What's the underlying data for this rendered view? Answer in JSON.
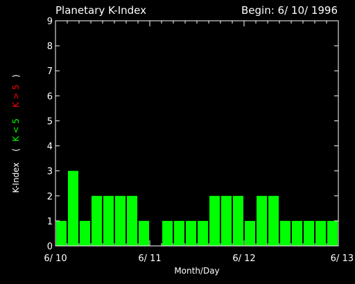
{
  "chart_data": {
    "type": "bar",
    "title": "Planetary K-Index",
    "begin_label": "Begin: 6/ 10/ 1996",
    "xlabel": "Month/Day",
    "ylabel": {
      "main": "K-Index",
      "open_paren": "(",
      "low": "K < 5",
      "high": "K > 5",
      "close_paren": ")"
    },
    "ylim": [
      0,
      9
    ],
    "yticks": [
      "0",
      "1",
      "2",
      "3",
      "4",
      "5",
      "6",
      "7",
      "8",
      "9"
    ],
    "x_tick_labels": [
      "6/ 10",
      "6/ 11",
      "6/ 12",
      "6/ 13"
    ],
    "values": [
      1,
      3,
      1,
      2,
      2,
      2,
      2,
      1,
      0,
      1,
      1,
      1,
      1,
      2,
      2,
      2,
      1,
      2,
      2,
      1,
      1,
      1,
      1,
      1
    ],
    "colors": {
      "low": "#00ff00",
      "high": "#ff0000",
      "axis": "#ffffff",
      "background": "#000000"
    }
  }
}
